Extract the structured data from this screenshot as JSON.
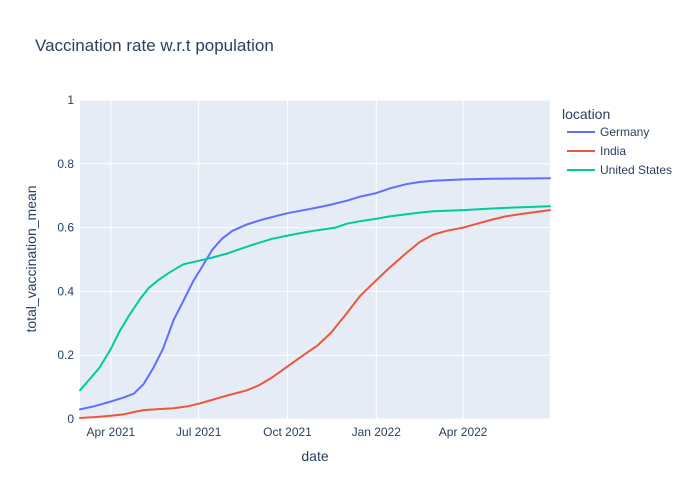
{
  "chart_data": {
    "type": "line",
    "title": "Vaccination rate w.r.t population",
    "xlabel": "date",
    "ylabel": "total_vaccination_mean",
    "x_ticks": [
      "Apr 2021",
      "Jul 2021",
      "Oct 2021",
      "Jan 2022",
      "Apr 2022"
    ],
    "y_ticks": [
      "0",
      "0.2",
      "0.4",
      "0.6",
      "0.8",
      "1"
    ],
    "xlim": [
      "2021-02-28",
      "2022-06-30"
    ],
    "ylim": [
      0,
      1
    ],
    "grid": true,
    "legend": {
      "title": "location",
      "placement": "right"
    },
    "series": [
      {
        "name": "Germany",
        "color": "#636efa",
        "points": [
          [
            "2021-02-28",
            0.03
          ],
          [
            "2021-03-15",
            0.04
          ],
          [
            "2021-04-01",
            0.055
          ],
          [
            "2021-04-15",
            0.068
          ],
          [
            "2021-04-25",
            0.08
          ],
          [
            "2021-05-05",
            0.11
          ],
          [
            "2021-05-15",
            0.16
          ],
          [
            "2021-05-25",
            0.22
          ],
          [
            "2021-06-05",
            0.31
          ],
          [
            "2021-06-15",
            0.37
          ],
          [
            "2021-06-25",
            0.43
          ],
          [
            "2021-07-05",
            0.48
          ],
          [
            "2021-07-15",
            0.53
          ],
          [
            "2021-07-25",
            0.565
          ],
          [
            "2021-08-05",
            0.59
          ],
          [
            "2021-08-20",
            0.61
          ],
          [
            "2021-09-05",
            0.625
          ],
          [
            "2021-09-20",
            0.637
          ],
          [
            "2021-10-01",
            0.645
          ],
          [
            "2021-10-15",
            0.653
          ],
          [
            "2021-11-01",
            0.663
          ],
          [
            "2021-11-15",
            0.672
          ],
          [
            "2021-12-01",
            0.684
          ],
          [
            "2021-12-15",
            0.697
          ],
          [
            "2022-01-01",
            0.708
          ],
          [
            "2022-01-15",
            0.723
          ],
          [
            "2022-02-01",
            0.736
          ],
          [
            "2022-02-15",
            0.743
          ],
          [
            "2022-03-01",
            0.747
          ],
          [
            "2022-04-01",
            0.751
          ],
          [
            "2022-05-01",
            0.753
          ],
          [
            "2022-06-30",
            0.755
          ]
        ]
      },
      {
        "name": "India",
        "color": "#ef553b",
        "points": [
          [
            "2021-02-28",
            0.003
          ],
          [
            "2021-03-15",
            0.006
          ],
          [
            "2021-04-01",
            0.01
          ],
          [
            "2021-04-15",
            0.015
          ],
          [
            "2021-04-25",
            0.022
          ],
          [
            "2021-05-05",
            0.028
          ],
          [
            "2021-05-20",
            0.031
          ],
          [
            "2021-06-05",
            0.034
          ],
          [
            "2021-06-20",
            0.04
          ],
          [
            "2021-07-01",
            0.048
          ],
          [
            "2021-07-15",
            0.06
          ],
          [
            "2021-08-01",
            0.075
          ],
          [
            "2021-08-20",
            0.09
          ],
          [
            "2021-09-01",
            0.105
          ],
          [
            "2021-09-15",
            0.13
          ],
          [
            "2021-10-01",
            0.165
          ],
          [
            "2021-10-15",
            0.195
          ],
          [
            "2021-11-01",
            0.23
          ],
          [
            "2021-11-15",
            0.27
          ],
          [
            "2021-12-01",
            0.33
          ],
          [
            "2021-12-15",
            0.385
          ],
          [
            "2022-01-01",
            0.435
          ],
          [
            "2022-01-15",
            0.475
          ],
          [
            "2022-02-01",
            0.52
          ],
          [
            "2022-02-15",
            0.555
          ],
          [
            "2022-03-01",
            0.578
          ],
          [
            "2022-03-15",
            0.59
          ],
          [
            "2022-04-01",
            0.6
          ],
          [
            "2022-04-15",
            0.612
          ],
          [
            "2022-05-01",
            0.625
          ],
          [
            "2022-05-15",
            0.635
          ],
          [
            "2022-06-01",
            0.643
          ],
          [
            "2022-06-30",
            0.655
          ]
        ]
      },
      {
        "name": "United States",
        "color": "#00cc96",
        "points": [
          [
            "2021-02-28",
            0.09
          ],
          [
            "2021-03-10",
            0.125
          ],
          [
            "2021-03-20",
            0.16
          ],
          [
            "2021-04-01",
            0.22
          ],
          [
            "2021-04-10",
            0.275
          ],
          [
            "2021-04-20",
            0.325
          ],
          [
            "2021-05-01",
            0.375
          ],
          [
            "2021-05-10",
            0.41
          ],
          [
            "2021-05-20",
            0.435
          ],
          [
            "2021-06-01",
            0.46
          ],
          [
            "2021-06-15",
            0.485
          ],
          [
            "2021-07-01",
            0.496
          ],
          [
            "2021-07-15",
            0.506
          ],
          [
            "2021-08-01",
            0.52
          ],
          [
            "2021-08-15",
            0.535
          ],
          [
            "2021-09-01",
            0.552
          ],
          [
            "2021-09-15",
            0.565
          ],
          [
            "2021-10-01",
            0.575
          ],
          [
            "2021-10-15",
            0.583
          ],
          [
            "2021-11-01",
            0.592
          ],
          [
            "2021-11-20",
            0.6
          ],
          [
            "2021-12-01",
            0.612
          ],
          [
            "2021-12-15",
            0.62
          ],
          [
            "2022-01-01",
            0.628
          ],
          [
            "2022-01-15",
            0.635
          ],
          [
            "2022-02-01",
            0.642
          ],
          [
            "2022-02-15",
            0.647
          ],
          [
            "2022-03-01",
            0.651
          ],
          [
            "2022-04-01",
            0.655
          ],
          [
            "2022-05-01",
            0.66
          ],
          [
            "2022-06-01",
            0.664
          ],
          [
            "2022-06-30",
            0.667
          ]
        ]
      }
    ]
  }
}
